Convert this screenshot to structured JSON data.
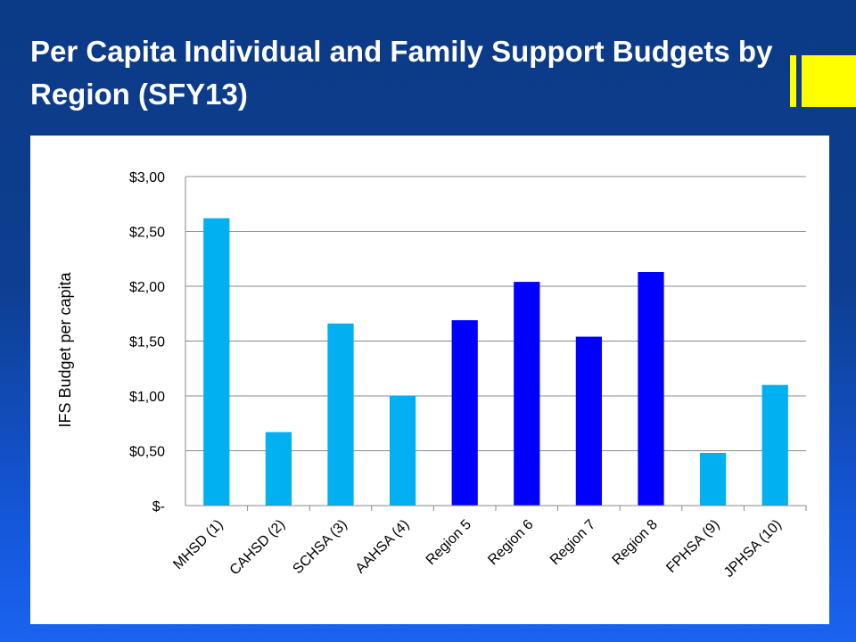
{
  "title": "Per Capita Individual and Family Support Budgets by Region (SFY13)",
  "colors": {
    "bar_light": "#00b0f0",
    "bar_dark": "#0000ff",
    "accent": "#ffff00"
  },
  "chart_data": {
    "type": "bar",
    "ylabel": "IFS Budget per capita",
    "ylim": [
      0,
      3.0
    ],
    "yticks": [
      {
        "value": 0,
        "label": "$-"
      },
      {
        "value": 0.5,
        "label": "$0,50"
      },
      {
        "value": 1.0,
        "label": "$1,00"
      },
      {
        "value": 1.5,
        "label": "$1,50"
      },
      {
        "value": 2.0,
        "label": "$2,00"
      },
      {
        "value": 2.5,
        "label": "$2,50"
      },
      {
        "value": 3.0,
        "label": "$3,00"
      }
    ],
    "grid": true,
    "categories": [
      "MHSD (1)",
      "CAHSD (2)",
      "SCHSA (3)",
      "AAHSA (4)",
      "Region 5",
      "Region 6",
      "Region 7",
      "Region 8",
      "FPHSA (9)",
      "JPHSA (10)"
    ],
    "values": [
      2.62,
      0.67,
      1.66,
      1.0,
      1.69,
      2.04,
      1.54,
      2.13,
      0.48,
      1.1
    ],
    "bar_colors": [
      "#00b0f0",
      "#00b0f0",
      "#00b0f0",
      "#00b0f0",
      "#0000ff",
      "#0000ff",
      "#0000ff",
      "#0000ff",
      "#00b0f0",
      "#00b0f0"
    ]
  }
}
